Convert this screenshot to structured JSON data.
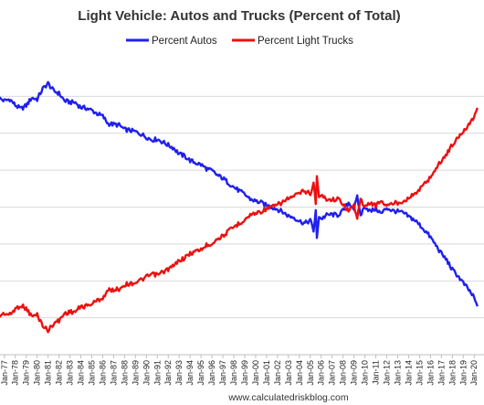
{
  "chart_data": {
    "type": "line",
    "title": "Light Vehicle: Autos and Trucks (Percent of Total)",
    "xlabel": "",
    "ylabel": "",
    "ylim": [
      10,
      90
    ],
    "grid": true,
    "legend_position": "top",
    "x_ticks": [
      "Jan-77",
      "Jan-78",
      "Jan-79",
      "Jan-80",
      "Jan-81",
      "Jan-82",
      "Jan-83",
      "Jan-84",
      "Jan-85",
      "Jan-86",
      "Jan-87",
      "Jan-88",
      "Jan-89",
      "Jan-90",
      "Jan-91",
      "Jan-92",
      "Jan-93",
      "Jan-94",
      "Jan-95",
      "Jan-96",
      "Jan-97",
      "Jan-98",
      "Jan-99",
      "Jan-00",
      "Jan-01",
      "Jan-02",
      "Jan-03",
      "Jan-04",
      "Jan-05",
      "Jan-06",
      "Jan-07",
      "Jan-08",
      "Jan-09",
      "Jan-10",
      "Jan-11",
      "Jan-12",
      "Jan-13",
      "Jan-14",
      "Jan-15",
      "Jan-16",
      "Jan-17",
      "Jan-18",
      "Jan-19",
      "Jan-20"
    ],
    "series": [
      {
        "name": "Percent Autos",
        "color": "#2020ee",
        "points": [
          [
            1976.5,
            79.5
          ],
          [
            1977.0,
            78.8
          ],
          [
            1977.5,
            79.2
          ],
          [
            1978.0,
            77.6
          ],
          [
            1978.5,
            76.6
          ],
          [
            1979.0,
            77.5
          ],
          [
            1979.5,
            79.6
          ],
          [
            1980.0,
            79.2
          ],
          [
            1980.5,
            82.0
          ],
          [
            1981.0,
            83.5
          ],
          [
            1981.5,
            81.5
          ],
          [
            1982.0,
            80.8
          ],
          [
            1982.5,
            78.8
          ],
          [
            1983.0,
            78.4
          ],
          [
            1983.5,
            78.3
          ],
          [
            1984.0,
            77.0
          ],
          [
            1984.5,
            76.8
          ],
          [
            1985.0,
            76.2
          ],
          [
            1985.5,
            75.3
          ],
          [
            1986.0,
            74.6
          ],
          [
            1986.5,
            72.6
          ],
          [
            1987.0,
            72.4
          ],
          [
            1987.5,
            72.2
          ],
          [
            1988.0,
            71.0
          ],
          [
            1988.5,
            70.8
          ],
          [
            1989.0,
            70.4
          ],
          [
            1989.5,
            69.8
          ],
          [
            1990.0,
            69.0
          ],
          [
            1990.5,
            68.2
          ],
          [
            1991.0,
            68.4
          ],
          [
            1991.5,
            67.6
          ],
          [
            1992.0,
            66.8
          ],
          [
            1992.5,
            66.0
          ],
          [
            1993.0,
            64.4
          ],
          [
            1993.5,
            63.8
          ],
          [
            1994.0,
            62.6
          ],
          [
            1994.5,
            62.0
          ],
          [
            1995.0,
            61.5
          ],
          [
            1995.5,
            60.4
          ],
          [
            1996.0,
            59.8
          ],
          [
            1996.5,
            58.6
          ],
          [
            1997.0,
            57.8
          ],
          [
            1997.5,
            56.6
          ],
          [
            1998.0,
            55.4
          ],
          [
            1998.5,
            54.4
          ],
          [
            1999.0,
            53.4
          ],
          [
            1999.5,
            52.2
          ],
          [
            2000.0,
            51.6
          ],
          [
            2000.5,
            51.2
          ],
          [
            2001.0,
            50.4
          ],
          [
            2001.5,
            50.0
          ],
          [
            2002.0,
            49.4
          ],
          [
            2002.5,
            48.6
          ],
          [
            2003.0,
            47.6
          ],
          [
            2003.5,
            47.2
          ],
          [
            2004.0,
            46.2
          ],
          [
            2004.5,
            45.6
          ],
          [
            2005.0,
            46.4
          ],
          [
            2005.3,
            43.6
          ],
          [
            2005.5,
            49.0
          ],
          [
            2005.6,
            41.5
          ],
          [
            2005.8,
            47.6
          ],
          [
            2006.0,
            46.8
          ],
          [
            2006.5,
            47.8
          ],
          [
            2007.0,
            48.0
          ],
          [
            2007.5,
            47.8
          ],
          [
            2008.0,
            49.0
          ],
          [
            2008.5,
            51.2
          ],
          [
            2009.0,
            49.6
          ],
          [
            2009.3,
            52.6
          ],
          [
            2009.6,
            47.8
          ],
          [
            2010.0,
            50.2
          ],
          [
            2010.5,
            48.8
          ],
          [
            2011.0,
            49.6
          ],
          [
            2011.5,
            48.2
          ],
          [
            2012.0,
            49.8
          ],
          [
            2012.5,
            49.0
          ],
          [
            2013.0,
            48.8
          ],
          [
            2013.5,
            48.4
          ],
          [
            2014.0,
            47.4
          ],
          [
            2014.5,
            46.6
          ],
          [
            2015.0,
            45.2
          ],
          [
            2015.5,
            43.6
          ],
          [
            2016.0,
            41.8
          ],
          [
            2016.5,
            39.6
          ],
          [
            2017.0,
            37.4
          ],
          [
            2017.5,
            35.6
          ],
          [
            2018.0,
            33.0
          ],
          [
            2018.5,
            31.4
          ],
          [
            2019.0,
            29.4
          ],
          [
            2019.5,
            27.6
          ],
          [
            2020.0,
            25.4
          ],
          [
            2020.3,
            22.8
          ]
        ]
      },
      {
        "name": "Percent Light Trucks",
        "color": "#ee1010",
        "points": [
          [
            1976.5,
            20.5
          ],
          [
            1977.0,
            21.2
          ],
          [
            1977.5,
            20.8
          ],
          [
            1978.0,
            22.4
          ],
          [
            1978.5,
            23.4
          ],
          [
            1979.0,
            22.5
          ],
          [
            1979.5,
            20.4
          ],
          [
            1980.0,
            20.8
          ],
          [
            1980.5,
            18.0
          ],
          [
            1981.0,
            16.5
          ],
          [
            1981.5,
            18.5
          ],
          [
            1982.0,
            19.2
          ],
          [
            1982.5,
            21.2
          ],
          [
            1983.0,
            21.6
          ],
          [
            1983.5,
            21.7
          ],
          [
            1984.0,
            23.0
          ],
          [
            1984.5,
            23.2
          ],
          [
            1985.0,
            23.8
          ],
          [
            1985.5,
            24.7
          ],
          [
            1986.0,
            25.4
          ],
          [
            1986.5,
            27.4
          ],
          [
            1987.0,
            27.6
          ],
          [
            1987.5,
            27.8
          ],
          [
            1988.0,
            29.0
          ],
          [
            1988.5,
            29.2
          ],
          [
            1989.0,
            29.6
          ],
          [
            1989.5,
            30.2
          ],
          [
            1990.0,
            31.0
          ],
          [
            1990.5,
            31.8
          ],
          [
            1991.0,
            31.6
          ],
          [
            1991.5,
            32.4
          ],
          [
            1992.0,
            33.2
          ],
          [
            1992.5,
            34.0
          ],
          [
            1993.0,
            35.6
          ],
          [
            1993.5,
            36.2
          ],
          [
            1994.0,
            37.4
          ],
          [
            1994.5,
            38.0
          ],
          [
            1995.0,
            38.5
          ],
          [
            1995.5,
            39.6
          ],
          [
            1996.0,
            40.2
          ],
          [
            1996.5,
            41.4
          ],
          [
            1997.0,
            42.2
          ],
          [
            1997.5,
            43.4
          ],
          [
            1998.0,
            44.6
          ],
          [
            1998.5,
            45.6
          ],
          [
            1999.0,
            46.6
          ],
          [
            1999.5,
            47.8
          ],
          [
            2000.0,
            48.4
          ],
          [
            2000.5,
            48.8
          ],
          [
            2001.0,
            49.6
          ],
          [
            2001.5,
            50.0
          ],
          [
            2002.0,
            50.6
          ],
          [
            2002.5,
            51.4
          ],
          [
            2003.0,
            52.4
          ],
          [
            2003.5,
            52.8
          ],
          [
            2004.0,
            53.8
          ],
          [
            2004.5,
            54.4
          ],
          [
            2005.0,
            53.6
          ],
          [
            2005.3,
            56.4
          ],
          [
            2005.5,
            51.0
          ],
          [
            2005.6,
            58.5
          ],
          [
            2005.8,
            52.4
          ],
          [
            2006.0,
            53.2
          ],
          [
            2006.5,
            52.2
          ],
          [
            2007.0,
            52.0
          ],
          [
            2007.5,
            52.2
          ],
          [
            2008.0,
            51.0
          ],
          [
            2008.5,
            48.8
          ],
          [
            2009.0,
            50.4
          ],
          [
            2009.3,
            47.4
          ],
          [
            2009.6,
            52.2
          ],
          [
            2010.0,
            49.8
          ],
          [
            2010.5,
            51.2
          ],
          [
            2011.0,
            50.4
          ],
          [
            2011.5,
            51.8
          ],
          [
            2012.0,
            50.2
          ],
          [
            2012.5,
            51.0
          ],
          [
            2013.0,
            51.2
          ],
          [
            2013.5,
            51.6
          ],
          [
            2014.0,
            52.6
          ],
          [
            2014.5,
            53.4
          ],
          [
            2015.0,
            54.8
          ],
          [
            2015.5,
            56.4
          ],
          [
            2016.0,
            58.2
          ],
          [
            2016.5,
            60.4
          ],
          [
            2017.0,
            62.6
          ],
          [
            2017.5,
            64.4
          ],
          [
            2018.0,
            67.0
          ],
          [
            2018.5,
            68.6
          ],
          [
            2019.0,
            70.6
          ],
          [
            2019.5,
            72.4
          ],
          [
            2020.0,
            74.6
          ],
          [
            2020.3,
            77.2
          ]
        ]
      }
    ]
  },
  "footer_text": "www.calculatedriskblog.com"
}
